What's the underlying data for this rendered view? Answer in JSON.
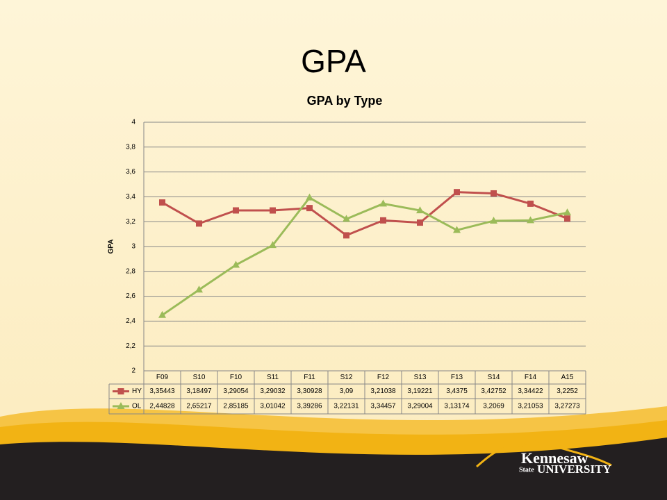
{
  "slide": {
    "title": "GPA"
  },
  "logo": {
    "name": "Kennesaw",
    "state": "State",
    "university": "UNIVERSITY"
  },
  "chart_data": {
    "type": "line",
    "title": "GPA by Type",
    "y_label": "GPA",
    "categories": [
      "F09",
      "S10",
      "F10",
      "S11",
      "F11",
      "S12",
      "F12",
      "S13",
      "F13",
      "S14",
      "F14",
      "A15"
    ],
    "series": [
      {
        "name": "HY",
        "color": "#c0504d",
        "marker": "square",
        "values": [
          3.35443,
          3.18497,
          3.29054,
          3.29032,
          3.30928,
          3.09,
          3.21038,
          3.19221,
          3.4375,
          3.42752,
          3.34422,
          3.2252
        ],
        "value_labels": [
          "3,35443",
          "3,18497",
          "3,29054",
          "3,29032",
          "3,30928",
          "3,09",
          "3,21038",
          "3,19221",
          "3,4375",
          "3,42752",
          "3,34422",
          "3,2252"
        ]
      },
      {
        "name": "OL",
        "color": "#9bbb59",
        "marker": "triangle",
        "values": [
          2.44828,
          2.65217,
          2.85185,
          3.01042,
          3.39286,
          3.22131,
          3.34457,
          3.29004,
          3.13174,
          3.2069,
          3.21053,
          3.27273
        ],
        "value_labels": [
          "2,44828",
          "2,65217",
          "2,85185",
          "3,01042",
          "3,39286",
          "3,22131",
          "3,34457",
          "3,29004",
          "3,13174",
          "3,2069",
          "3,21053",
          "3,27273"
        ]
      }
    ],
    "ylim": [
      2,
      4
    ],
    "yticks": [
      2,
      {
        "value": 2.2,
        "label": "2,2"
      },
      {
        "value": 2.4,
        "label": "2,4"
      },
      {
        "value": 2.6,
        "label": "2,6"
      },
      {
        "value": 2.8,
        "label": "2,8"
      },
      3,
      {
        "value": 3.2,
        "label": "3,2"
      },
      {
        "value": 3.4,
        "label": "3,4"
      },
      {
        "value": 3.6,
        "label": "3,6"
      },
      {
        "value": 3.8,
        "label": "3,8"
      },
      4
    ],
    "grid": true,
    "data_table": true
  }
}
